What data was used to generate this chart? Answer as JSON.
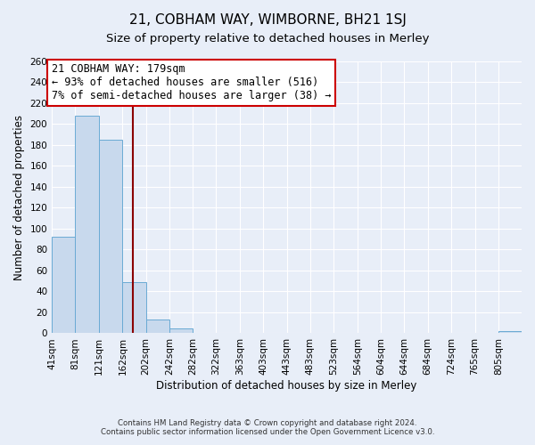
{
  "title": "21, COBHAM WAY, WIMBORNE, BH21 1SJ",
  "subtitle": "Size of property relative to detached houses in Merley",
  "xlabel": "Distribution of detached houses by size in Merley",
  "ylabel": "Number of detached properties",
  "footer_line1": "Contains HM Land Registry data © Crown copyright and database right 2024.",
  "footer_line2": "Contains public sector information licensed under the Open Government Licence v3.0.",
  "bin_edges": [
    41,
    81,
    121,
    162,
    202,
    242,
    282,
    322,
    363,
    403,
    443,
    483,
    523,
    564,
    604,
    644,
    684,
    724,
    765,
    805,
    845
  ],
  "bar_heights": [
    92,
    208,
    185,
    49,
    13,
    5,
    0,
    0,
    0,
    0,
    0,
    0,
    0,
    0,
    0,
    0,
    0,
    0,
    0,
    2
  ],
  "bar_color": "#c8d9ed",
  "bar_edge_color": "#6aaad4",
  "property_value": 179,
  "vline_color": "#8b0000",
  "annotation_title": "21 COBHAM WAY: 179sqm",
  "annotation_line1": "← 93% of detached houses are smaller (516)",
  "annotation_line2": "7% of semi-detached houses are larger (38) →",
  "annotation_box_edge": "#cc0000",
  "annotation_box_bg": "white",
  "ylim": [
    0,
    260
  ],
  "yticks": [
    0,
    20,
    40,
    60,
    80,
    100,
    120,
    140,
    160,
    180,
    200,
    220,
    240,
    260
  ],
  "background_color": "#e8eef8",
  "plot_bg_color": "#e8eef8",
  "grid_color": "white",
  "title_fontsize": 11,
  "subtitle_fontsize": 9.5,
  "axis_label_fontsize": 8.5,
  "tick_label_fontsize": 7.5,
  "annotation_fontsize": 8.5
}
